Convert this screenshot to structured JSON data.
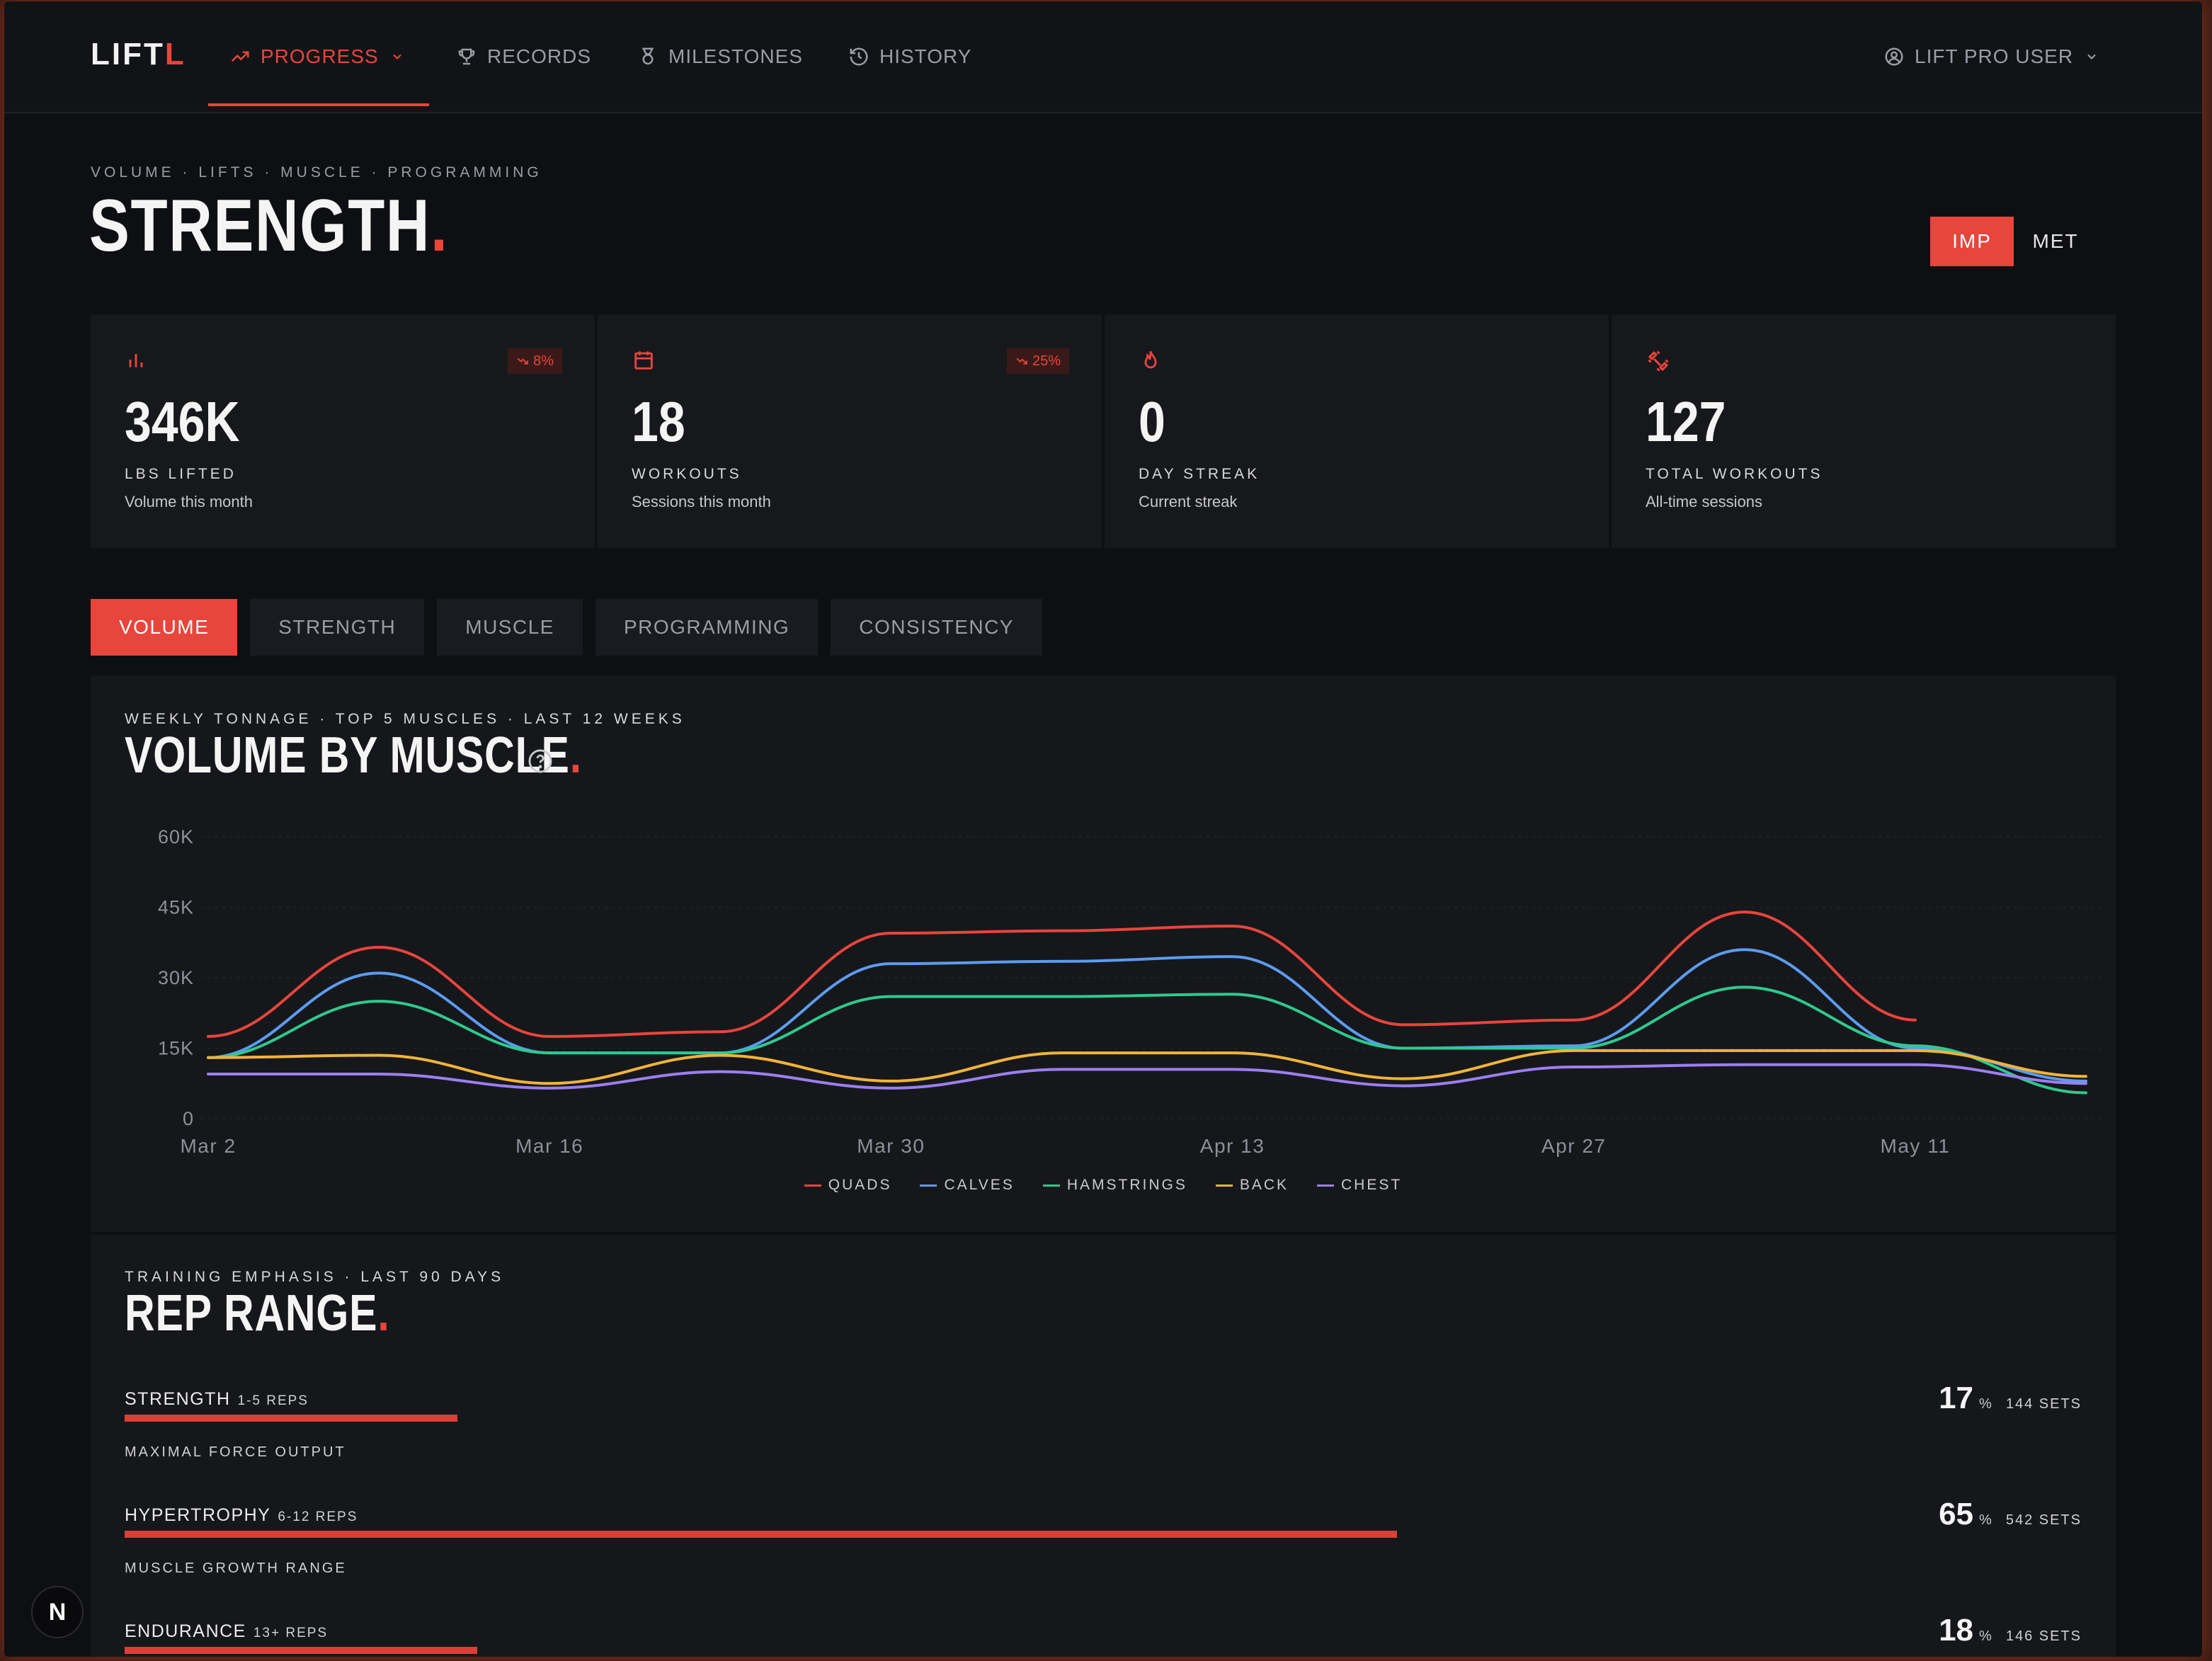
{
  "app": {
    "logo_main": "LIFT",
    "logo_accent": "L"
  },
  "nav": {
    "items": [
      {
        "label": "PROGRESS",
        "icon": "trending-up-icon",
        "active": true
      },
      {
        "label": "RECORDS",
        "icon": "trophy-icon"
      },
      {
        "label": "MILESTONES",
        "icon": "medal-icon"
      },
      {
        "label": "HISTORY",
        "icon": "history-icon"
      }
    ],
    "user_label": "LIFT PRO USER",
    "accent_color": "#e8453c"
  },
  "header": {
    "breadcrumb": "VOLUME · LIFTS · MUSCLE · PROGRAMMING",
    "title": "STRENGTH",
    "title_dot": ".",
    "units": [
      "IMP",
      "MET"
    ],
    "active_unit": "IMP"
  },
  "stats": [
    {
      "icon": "bar-chart-icon",
      "value": "346K",
      "label": "LBS LIFTED",
      "sub": "Volume this month",
      "badge": "8%"
    },
    {
      "icon": "calendar-icon",
      "value": "18",
      "label": "WORKOUTS",
      "sub": "Sessions this month",
      "badge": "25%"
    },
    {
      "icon": "flame-icon",
      "value": "0",
      "label": "DAY STREAK",
      "sub": "Current streak",
      "badge": null
    },
    {
      "icon": "dumbbell-icon",
      "value": "127",
      "label": "TOTAL WORKOUTS",
      "sub": "All-time sessions",
      "badge": null
    }
  ],
  "tabs": [
    {
      "label": "VOLUME",
      "active": true
    },
    {
      "label": "STRENGTH"
    },
    {
      "label": "MUSCLE"
    },
    {
      "label": "PROGRAMMING"
    },
    {
      "label": "CONSISTENCY"
    }
  ],
  "volume_panel": {
    "eyebrow": "WEEKLY TONNAGE · TOP 5 MUSCLES · LAST 12 WEEKS",
    "title": "VOLUME BY MUSCLE",
    "title_dot": "."
  },
  "chart_data": {
    "type": "line",
    "x": [
      "Mar 2",
      "Mar 9",
      "Mar 16",
      "Mar 23",
      "Mar 30",
      "Apr 6",
      "Apr 13",
      "Apr 20",
      "Apr 27",
      "May 4",
      "May 11",
      "May 18"
    ],
    "x_tick_labels": [
      "Mar 2",
      "Mar 16",
      "Mar 30",
      "Apr 13",
      "Apr 27",
      "May 11"
    ],
    "y_tick_labels": [
      "0",
      "15K",
      "30K",
      "45K",
      "60K"
    ],
    "ylim": [
      0,
      60000
    ],
    "grid": true,
    "legend_position": "bottom-center",
    "series": [
      {
        "name": "QUADS",
        "color": "#e8453c",
        "values": [
          17500,
          36500,
          17500,
          18500,
          39500,
          40000,
          41000,
          20000,
          21000,
          44000,
          21000,
          null
        ]
      },
      {
        "name": "CALVES",
        "color": "#5b9cf0",
        "values": [
          13000,
          31000,
          14000,
          14000,
          33000,
          33500,
          34500,
          15000,
          15500,
          36000,
          15000,
          8000
        ]
      },
      {
        "name": "HAMSTRINGS",
        "color": "#2ec98e",
        "values": [
          13000,
          25000,
          14000,
          14000,
          26000,
          26000,
          26500,
          15000,
          15000,
          28000,
          15500,
          5500
        ]
      },
      {
        "name": "BACK",
        "color": "#f0b43a",
        "values": [
          13000,
          13500,
          7500,
          13500,
          8000,
          14000,
          14000,
          8500,
          14500,
          14500,
          14500,
          9000
        ]
      },
      {
        "name": "CHEST",
        "color": "#9b7ff0",
        "values": [
          9500,
          9500,
          6500,
          10000,
          6500,
          10500,
          10500,
          7000,
          11000,
          11500,
          11500,
          7500
        ]
      }
    ]
  },
  "rep_panel": {
    "eyebrow": "TRAINING EMPHASIS · LAST 90 DAYS",
    "title": "REP RANGE",
    "title_dot": ".",
    "rows": [
      {
        "name": "STRENGTH",
        "range": "1-5 REPS",
        "desc": "MAXIMAL FORCE OUTPUT",
        "pct": "17",
        "pct_sign": "%",
        "sets": "144 SETS",
        "fraction": 0.17
      },
      {
        "name": "HYPERTROPHY",
        "range": "6-12 REPS",
        "desc": "MUSCLE GROWTH RANGE",
        "pct": "65",
        "pct_sign": "%",
        "sets": "542 SETS",
        "fraction": 0.65
      },
      {
        "name": "ENDURANCE",
        "range": "13+ REPS",
        "desc": "",
        "pct": "18",
        "pct_sign": "%",
        "sets": "146 SETS",
        "fraction": 0.18
      }
    ]
  },
  "floating_badge": "N"
}
